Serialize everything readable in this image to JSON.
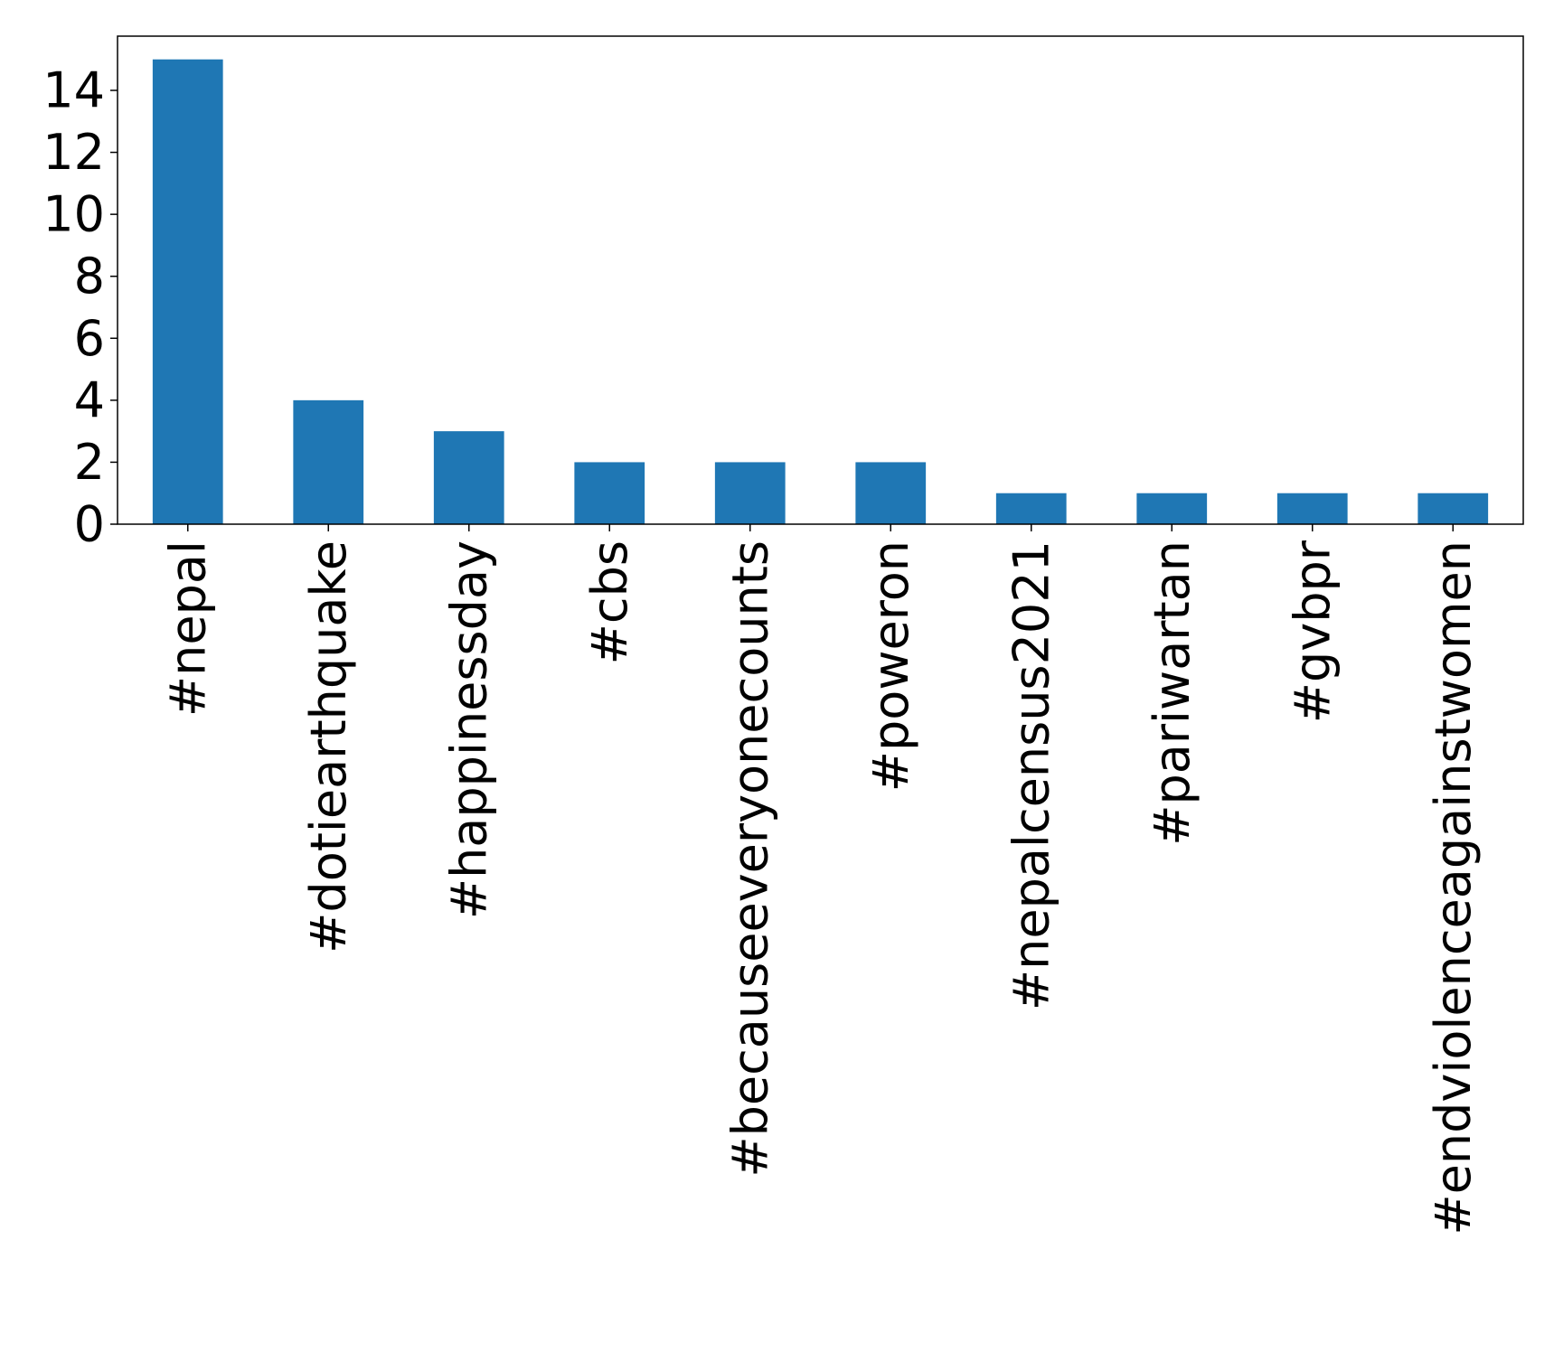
{
  "chart_data": {
    "type": "bar",
    "categories": [
      "#nepal",
      "#dotiearthquake",
      "#happinessday",
      "#cbs",
      "#becauseeveryonecounts",
      "#poweron",
      "#nepalcensus2021",
      "#pariwartan",
      "#gvbpr",
      "#endviolenceagainstwomen"
    ],
    "values": [
      15,
      4,
      3,
      2,
      2,
      2,
      1,
      1,
      1,
      1
    ],
    "ylim": [
      0,
      15.75
    ],
    "yticks": [
      0,
      2,
      4,
      6,
      8,
      10,
      12,
      14
    ],
    "bar_color": "#1f77b4",
    "grid": false,
    "title": "",
    "xlabel": "",
    "ylabel": ""
  }
}
